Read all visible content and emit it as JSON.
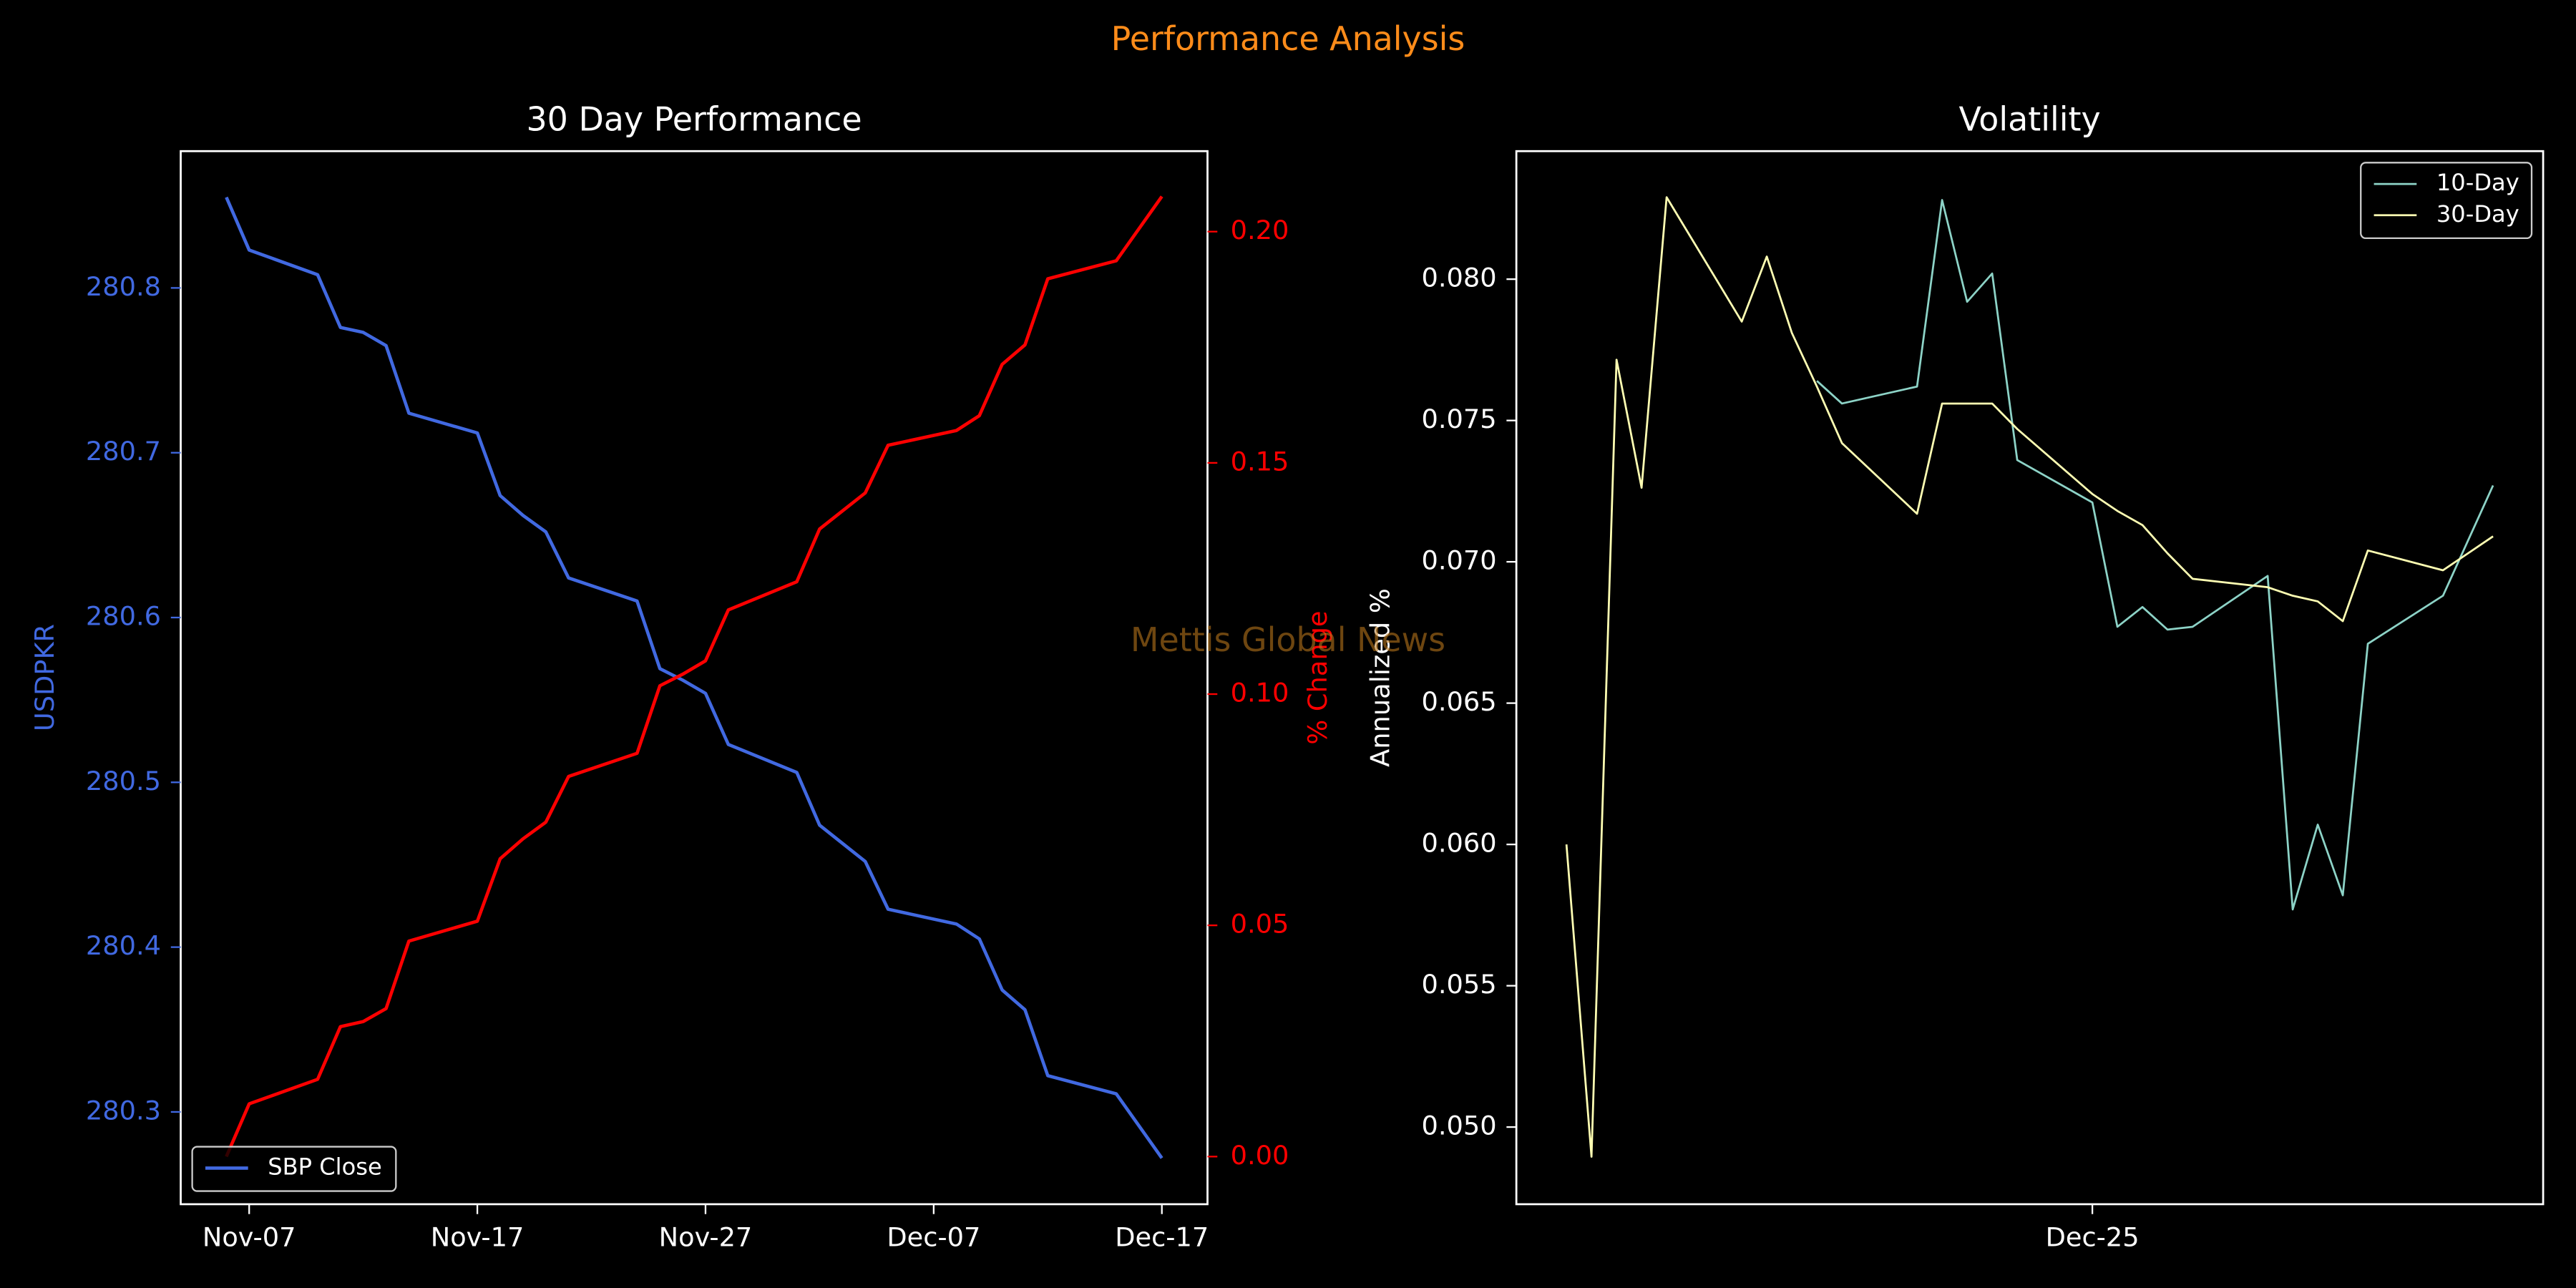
{
  "title": "Performance Analysis",
  "watermark": "Mettis Global News",
  "chart_data": [
    {
      "type": "line",
      "title": "30 Day Performance",
      "ylabel": "USDPKR",
      "y2label": "% Change",
      "x": [
        "Nov-06",
        "Nov-07",
        "Nov-10",
        "Nov-11",
        "Nov-12",
        "Nov-13",
        "Nov-14",
        "Nov-17",
        "Nov-18",
        "Nov-19",
        "Nov-20",
        "Nov-21",
        "Nov-24",
        "Nov-25",
        "Nov-26",
        "Nov-27",
        "Nov-28",
        "Dec-01",
        "Dec-02",
        "Dec-03",
        "Dec-04",
        "Dec-05",
        "Dec-08",
        "Dec-09",
        "Dec-10",
        "Dec-11",
        "Dec-12",
        "Dec-15",
        "Dec-17"
      ],
      "series": [
        {
          "name": "SBP Close",
          "color": "#4169e1",
          "values": [
            280.855,
            280.823,
            280.808,
            280.776,
            280.773,
            280.765,
            280.724,
            280.712,
            280.674,
            280.662,
            280.652,
            280.624,
            280.61,
            280.569,
            280.562,
            280.554,
            280.523,
            280.506,
            280.474,
            280.463,
            280.452,
            280.423,
            280.414,
            280.405,
            280.374,
            280.362,
            280.322,
            280.311,
            280.272
          ]
        },
        {
          "color": "#ff0000",
          "axis": "y2",
          "values": [
            0,
            0.0114,
            0.0167,
            0.0281,
            0.0292,
            0.032,
            0.0466,
            0.0509,
            0.0644,
            0.0687,
            0.0723,
            0.0822,
            0.0872,
            0.1018,
            0.1043,
            0.1072,
            0.1182,
            0.1243,
            0.1357,
            0.1396,
            0.1435,
            0.1538,
            0.157,
            0.1602,
            0.1713,
            0.1755,
            0.1898,
            0.1937,
            0.2076
          ]
        }
      ],
      "xlim": [
        "Nov-04",
        "Dec-19"
      ],
      "xticks": [
        "Nov-07",
        "Nov-17",
        "Nov-27",
        "Dec-07",
        "Dec-17"
      ],
      "ylim": [
        280.244,
        280.883
      ],
      "yticks": [
        280.3,
        280.4,
        280.5,
        280.6,
        280.7,
        280.8
      ],
      "y2lim": [
        -0.0103,
        0.2174
      ],
      "y2ticks": [
        {
          "value": 0,
          "label": "0.00"
        },
        {
          "value": 0.05,
          "label": "0.05"
        },
        {
          "value": 0.1,
          "label": "0.10"
        },
        {
          "value": 0.15,
          "label": "0.15"
        },
        {
          "value": 0.2,
          "label": "0.20"
        }
      ],
      "legend": "lower left",
      "linewidth": 2
    },
    {
      "type": "line",
      "title": "Volatility",
      "ylabel": "Annualized %",
      "x": [
        "Dec-04",
        "Dec-05",
        "Dec-06",
        "Dec-07",
        "Dec-08",
        "Dec-11",
        "Dec-12",
        "Dec-13",
        "Dec-14",
        "Dec-15",
        "Dec-18",
        "Dec-19",
        "Dec-20",
        "Dec-21",
        "Dec-22",
        "Dec-25",
        "Dec-26",
        "Dec-27",
        "Dec-28",
        "Dec-29",
        "Jan-01",
        "Jan-02",
        "Jan-03",
        "Jan-04",
        "Jan-05",
        "Jan-08",
        "Jan-10"
      ],
      "series": [
        {
          "name": "10-Day",
          "color": "#8dd3c7",
          "values": [
            null,
            null,
            null,
            null,
            null,
            null,
            null,
            null,
            0.0764,
            0.0756,
            0.0762,
            0.0828,
            0.0792,
            0.0802,
            0.0736,
            0.0721,
            0.0677,
            0.0684,
            0.0676,
            0.0677,
            0.0695,
            0.0577,
            0.0607,
            0.0582,
            0.0671,
            0.0688,
            0.0727
          ]
        },
        {
          "name": "30-Day",
          "color": "#ffffb3",
          "values": [
            0.06,
            0.04895,
            0.07715,
            0.07262,
            0.0829,
            0.0785,
            0.0808,
            0.0781,
            0.0762,
            0.0742,
            0.0717,
            0.0756,
            0.0756,
            0.0756,
            0.0747,
            0.0724,
            0.0718,
            0.0713,
            0.0703,
            0.0694,
            0.0691,
            0.0688,
            0.0686,
            0.0679,
            0.0704,
            0.0697,
            0.0709
          ]
        }
      ],
      "xlim": [
        "Dec-02",
        "Jan-12"
      ],
      "xticks": [
        "Dec-25"
      ],
      "ylim": [
        0.04727,
        0.08453
      ],
      "yticks": [
        {
          "value": 0.05,
          "label": "0.050"
        },
        {
          "value": 0.055,
          "label": "0.055"
        },
        {
          "value": 0.06,
          "label": "0.060"
        },
        {
          "value": 0.065,
          "label": "0.065"
        },
        {
          "value": 0.07,
          "label": "0.070"
        },
        {
          "value": 0.075,
          "label": "0.075"
        },
        {
          "value": 0.08,
          "label": "0.080"
        }
      ],
      "legend": "upper right",
      "linewidth": 1.2
    }
  ]
}
